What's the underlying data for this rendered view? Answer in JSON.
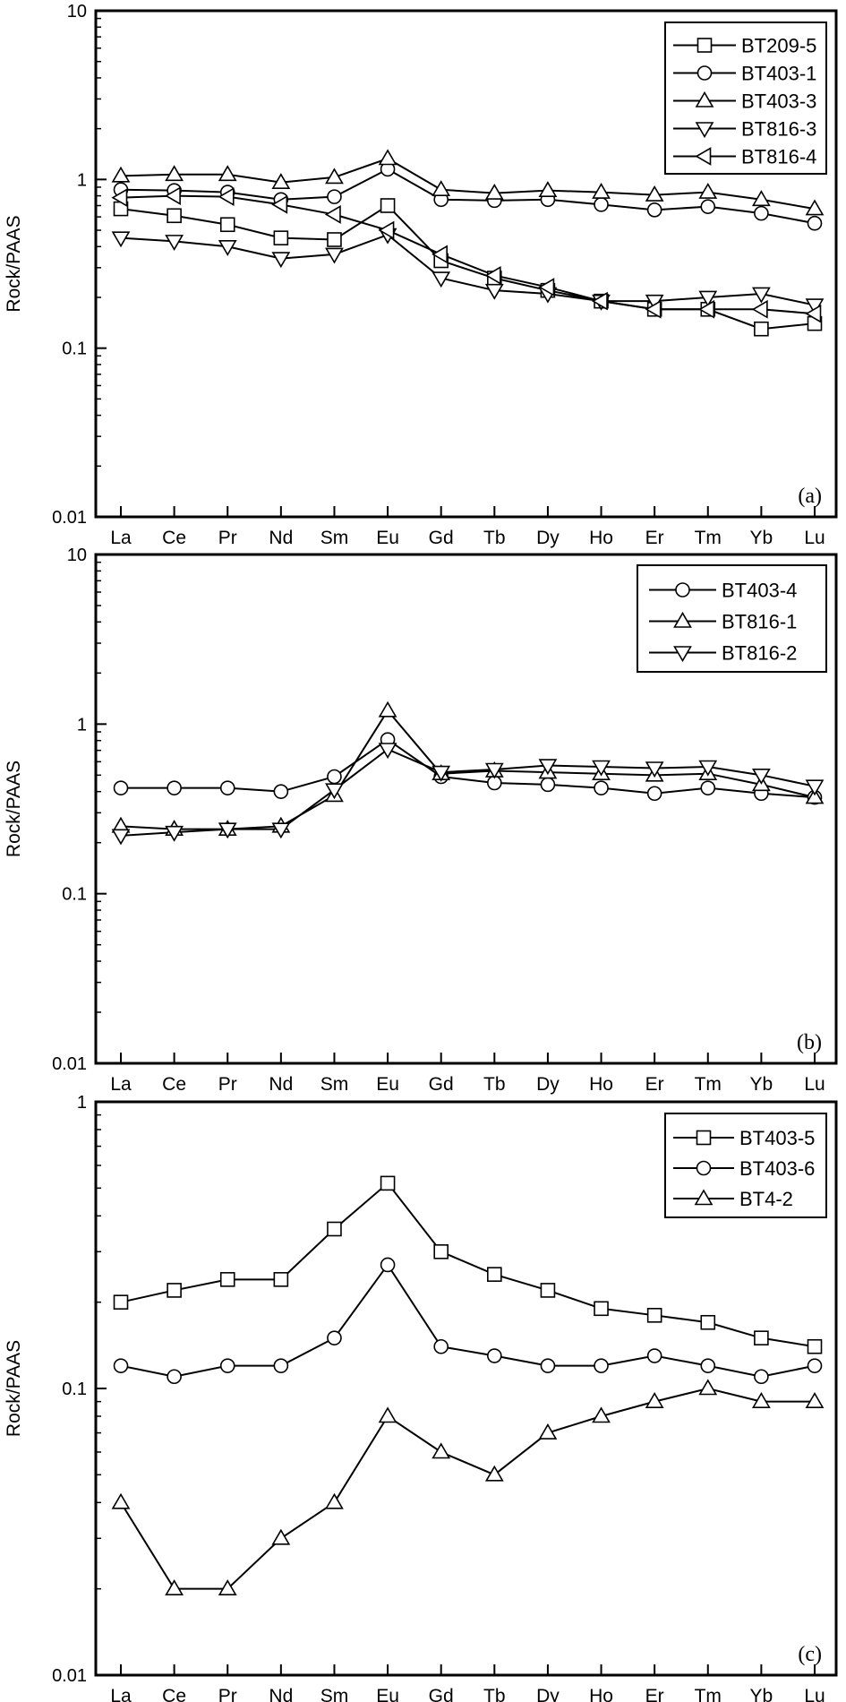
{
  "chart_data": [
    {
      "type": "line",
      "panel_label": "(a)",
      "ylabel": "Rock/PAAS",
      "yscale": "log",
      "ylim": [
        0.01,
        10
      ],
      "ytick_labels": [
        "10",
        "1",
        "0.1",
        "0.01"
      ],
      "categories": [
        "La",
        "Ce",
        "Pr",
        "Nd",
        "Sm",
        "Eu",
        "Gd",
        "Tb",
        "Dy",
        "Ho",
        "Er",
        "Tm",
        "Yb",
        "Lu"
      ],
      "legend_position": "top-right",
      "series": [
        {
          "name": "BT209-5",
          "marker": "square",
          "values": [
            0.67,
            0.61,
            0.54,
            0.45,
            0.44,
            0.7,
            0.33,
            0.26,
            0.22,
            0.19,
            0.17,
            0.17,
            0.13,
            0.14
          ]
        },
        {
          "name": "BT403-1",
          "marker": "circle",
          "values": [
            0.87,
            0.86,
            0.84,
            0.76,
            0.79,
            1.15,
            0.76,
            0.75,
            0.76,
            0.71,
            0.66,
            0.69,
            0.63,
            0.55
          ]
        },
        {
          "name": "BT403-3",
          "marker": "triangle-up",
          "values": [
            1.05,
            1.07,
            1.07,
            0.96,
            1.03,
            1.33,
            0.87,
            0.83,
            0.86,
            0.84,
            0.81,
            0.84,
            0.76,
            0.67
          ]
        },
        {
          "name": "BT816-3",
          "marker": "triangle-down",
          "values": [
            0.45,
            0.43,
            0.4,
            0.34,
            0.36,
            0.47,
            0.26,
            0.22,
            0.21,
            0.19,
            0.19,
            0.2,
            0.21,
            0.18
          ]
        },
        {
          "name": "BT816-4",
          "marker": "triangle-left",
          "values": [
            0.78,
            0.8,
            0.79,
            0.71,
            0.62,
            0.5,
            0.36,
            0.27,
            0.23,
            0.19,
            0.17,
            0.17,
            0.17,
            0.16
          ]
        }
      ]
    },
    {
      "type": "line",
      "panel_label": "(b)",
      "ylabel": "Rock/PAAS",
      "yscale": "log",
      "ylim": [
        0.01,
        10
      ],
      "ytick_labels": [
        "10",
        "1",
        "0.1",
        "0.01"
      ],
      "categories": [
        "La",
        "Ce",
        "Pr",
        "Nd",
        "Sm",
        "Eu",
        "Gd",
        "Tb",
        "Dy",
        "Ho",
        "Er",
        "Tm",
        "Yb",
        "Lu"
      ],
      "legend_position": "top-right",
      "series": [
        {
          "name": "BT403-4",
          "marker": "circle",
          "values": [
            0.42,
            0.42,
            0.42,
            0.4,
            0.49,
            0.81,
            0.49,
            0.45,
            0.44,
            0.42,
            0.39,
            0.42,
            0.39,
            0.37
          ]
        },
        {
          "name": "BT816-1",
          "marker": "triangle-up",
          "values": [
            0.25,
            0.24,
            0.24,
            0.25,
            0.38,
            1.2,
            0.51,
            0.53,
            0.52,
            0.51,
            0.5,
            0.51,
            0.44,
            0.37
          ]
        },
        {
          "name": "BT816-2",
          "marker": "triangle-down",
          "values": [
            0.22,
            0.23,
            0.24,
            0.24,
            0.41,
            0.71,
            0.52,
            0.54,
            0.57,
            0.56,
            0.55,
            0.56,
            0.5,
            0.43
          ]
        }
      ]
    },
    {
      "type": "line",
      "panel_label": "(c)",
      "ylabel": "Rock/PAAS",
      "yscale": "log",
      "ylim": [
        0.01,
        1
      ],
      "ytick_labels": [
        "1",
        "0.1",
        "0.01"
      ],
      "categories": [
        "La",
        "Ce",
        "Pr",
        "Nd",
        "Sm",
        "Eu",
        "Gd",
        "Tb",
        "Dy",
        "Ho",
        "Er",
        "Tm",
        "Yb",
        "Lu"
      ],
      "legend_position": "top-right",
      "series": [
        {
          "name": "BT403-5",
          "marker": "square",
          "values": [
            0.2,
            0.22,
            0.24,
            0.24,
            0.36,
            0.52,
            0.3,
            0.25,
            0.22,
            0.19,
            0.18,
            0.17,
            0.15,
            0.14
          ]
        },
        {
          "name": "BT403-6",
          "marker": "circle",
          "values": [
            0.12,
            0.11,
            0.12,
            0.12,
            0.15,
            0.27,
            0.14,
            0.13,
            0.12,
            0.12,
            0.13,
            0.12,
            0.11,
            0.12
          ]
        },
        {
          "name": "BT4-2",
          "marker": "triangle-up",
          "values": [
            0.04,
            0.02,
            0.02,
            0.03,
            0.04,
            0.08,
            0.06,
            0.05,
            0.07,
            0.08,
            0.09,
            0.1,
            0.09,
            0.09
          ]
        }
      ]
    }
  ]
}
